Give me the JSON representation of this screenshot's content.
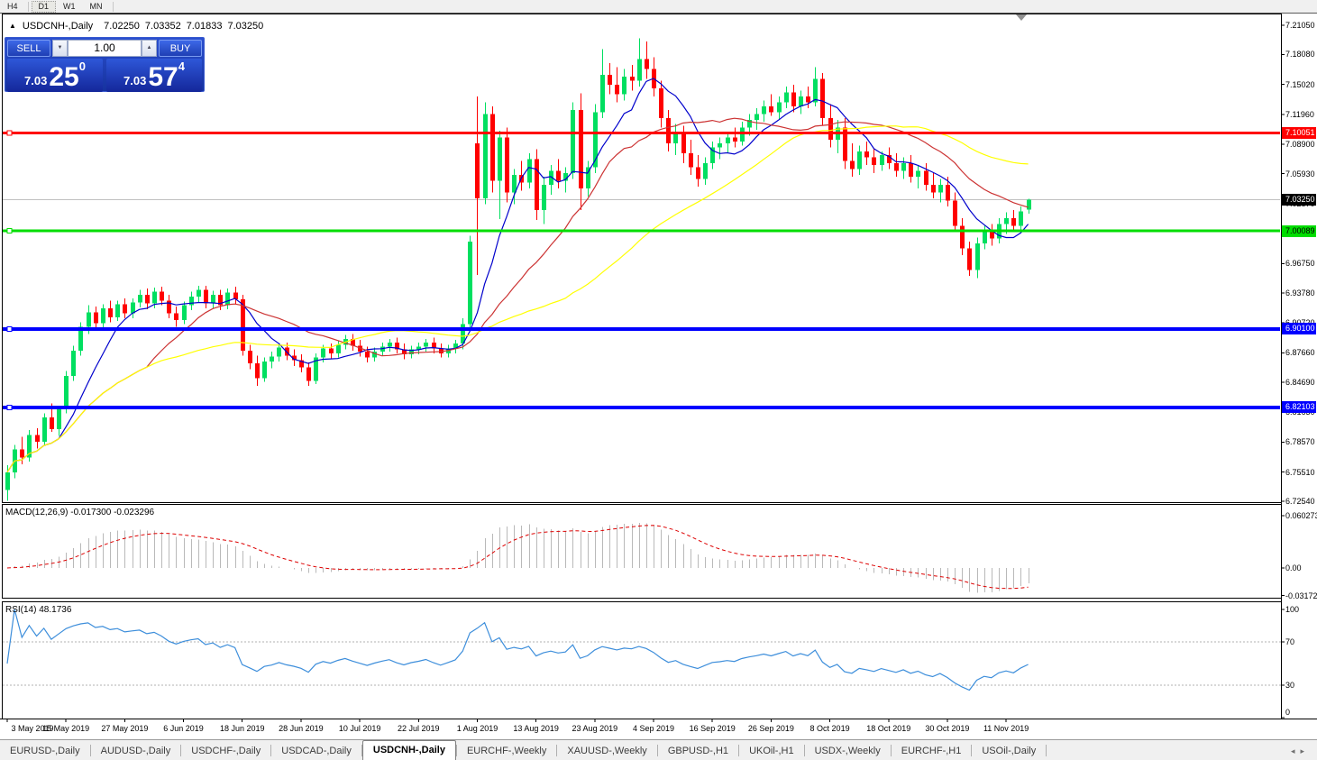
{
  "toolbar": {
    "timeframes": [
      "H4",
      "D1",
      "W1",
      "MN"
    ],
    "active": "D1"
  },
  "chart_header": {
    "collapse_icon": "▲",
    "symbol": "USDCNH-,Daily",
    "open": "7.02250",
    "high": "7.03352",
    "low": "7.01833",
    "close": "7.03250"
  },
  "trade_panel": {
    "sell_label": "SELL",
    "buy_label": "BUY",
    "volume": "1.00",
    "spin_down_icon": "▼",
    "spin_up_icon": "▲",
    "sell_price": {
      "small": "7.03",
      "big": "25",
      "sup": "0"
    },
    "buy_price": {
      "small": "7.03",
      "big": "57",
      "sup": "4"
    }
  },
  "tabs": {
    "items": [
      "EURUSD-,Daily",
      "AUDUSD-,Daily",
      "USDCHF-,Daily",
      "USDCAD-,Daily",
      "USDCNH-,Daily",
      "EURCHF-,Weekly",
      "XAUUSD-,Weekly",
      "GBPUSD-,H1",
      "UKOil-,H1",
      "USDX-,Weekly",
      "EURCHF-,H1",
      "USOil-,Daily"
    ],
    "active_index": 4,
    "scroll_left_icon": "◂",
    "scroll_right_icon": "▸"
  },
  "chart_data": {
    "type": "candlestick",
    "symbol": "USDCNH-,Daily",
    "ylim": [
      6.7254,
      7.2105
    ],
    "y_ticks": [
      "7.21050",
      "7.18080",
      "7.15020",
      "7.11960",
      "7.08900",
      "7.05930",
      "7.02870",
      "6.99810",
      "6.96750",
      "6.93780",
      "6.90720",
      "6.87660",
      "6.84690",
      "6.81630",
      "6.78570",
      "6.75510",
      "6.72540"
    ],
    "x_ticks": {
      "labels": [
        "3 May 2019",
        "15 May 2019",
        "27 May 2019",
        "6 Jun 2019",
        "18 Jun 2019",
        "28 Jun 2019",
        "10 Jul 2019",
        "22 Jul 2019",
        "1 Aug 2019",
        "13 Aug 2019",
        "23 Aug 2019",
        "4 Sep 2019",
        "16 Sep 2019",
        "26 Sep 2019",
        "8 Oct 2019",
        "18 Oct 2019",
        "30 Oct 2019",
        "11 Nov 2019"
      ],
      "indices": [
        0,
        8,
        16,
        24,
        32,
        40,
        48,
        56,
        64,
        72,
        80,
        88,
        96,
        104,
        112,
        120,
        128,
        136
      ]
    },
    "bull_color": "#00df60",
    "bear_color": "#ff0000",
    "price_lines": [
      {
        "price": 7.10051,
        "label": "7.10051",
        "color": "#ff0000",
        "thickness": 3,
        "fg": "#ffffff"
      },
      {
        "price": 7.00089,
        "label": "7.00089",
        "color": "#00dd00",
        "thickness": 3,
        "fg": "#000000"
      },
      {
        "price": 6.901,
        "label": "6.90100",
        "color": "#0000ff",
        "thickness": 4,
        "fg": "#ffffff"
      },
      {
        "price": 6.82103,
        "label": "6.82103",
        "color": "#0000ff",
        "thickness": 4,
        "fg": "#ffffff"
      }
    ],
    "current_price": {
      "value": 7.0325,
      "label": "7.03250",
      "line_color": "#c0c0c0",
      "bg": "#000000",
      "fg": "#ffffff"
    },
    "moving_averages": [
      {
        "period": 8,
        "color": "#0000cc"
      },
      {
        "period": 20,
        "color": "#cc3333"
      },
      {
        "period": 45,
        "color": "#ffff00"
      }
    ],
    "macd": {
      "name": "MACD(12,26,9)",
      "values": "-0.017300 -0.023296",
      "fast": 12,
      "slow": 26,
      "signal": 9,
      "range": [
        -0.031725,
        0.060273
      ],
      "ticks": [
        {
          "v": 0.060273,
          "t": "0.060273"
        },
        {
          "v": 0,
          "t": "0.00"
        },
        {
          "v": -0.031725,
          "t": "-0.031725"
        }
      ],
      "histogram_color": "#b9b9b9",
      "signal_color": "#dd0000"
    },
    "rsi": {
      "name": "RSI(14)",
      "value": "48.1736",
      "period": 14,
      "range": [
        0,
        100
      ],
      "levels": [
        70,
        30
      ],
      "ticks": [
        {
          "v": 100,
          "t": "100"
        },
        {
          "v": 70,
          "t": "70"
        },
        {
          "v": 30,
          "t": "30"
        },
        {
          "v": 0,
          "t": "0"
        }
      ],
      "line_color": "#3d8edb",
      "level_color": "#b0b0b0"
    },
    "shift_marker_color": "#909090",
    "candles": [
      [
        6.737,
        6.762,
        6.726,
        6.755
      ],
      [
        6.755,
        6.783,
        6.749,
        6.778
      ],
      [
        6.778,
        6.791,
        6.763,
        6.77
      ],
      [
        6.77,
        6.798,
        6.766,
        6.793
      ],
      [
        6.793,
        6.8,
        6.779,
        6.786
      ],
      [
        6.786,
        6.815,
        6.782,
        6.811
      ],
      [
        6.811,
        6.825,
        6.796,
        6.799
      ],
      [
        6.799,
        6.823,
        6.792,
        6.82
      ],
      [
        6.82,
        6.858,
        6.815,
        6.853
      ],
      [
        6.853,
        6.884,
        6.848,
        6.879
      ],
      [
        6.879,
        6.908,
        6.874,
        6.903
      ],
      [
        6.903,
        6.925,
        6.896,
        6.918
      ],
      [
        6.918,
        6.924,
        6.9,
        6.907
      ],
      [
        6.907,
        6.926,
        6.902,
        6.922
      ],
      [
        6.922,
        6.93,
        6.908,
        6.913
      ],
      [
        6.913,
        6.93,
        6.909,
        6.926
      ],
      [
        6.926,
        6.932,
        6.912,
        6.917
      ],
      [
        6.917,
        6.932,
        6.912,
        6.928
      ],
      [
        6.928,
        6.941,
        6.923,
        6.936
      ],
      [
        6.936,
        6.942,
        6.921,
        6.927
      ],
      [
        6.927,
        6.943,
        6.922,
        6.939
      ],
      [
        6.939,
        6.944,
        6.925,
        6.93
      ],
      [
        6.93,
        6.936,
        6.912,
        6.917
      ],
      [
        6.917,
        6.924,
        6.903,
        6.91
      ],
      [
        6.91,
        6.929,
        6.906,
        6.925
      ],
      [
        6.925,
        6.939,
        6.92,
        6.934
      ],
      [
        6.934,
        6.945,
        6.928,
        6.941
      ],
      [
        6.941,
        6.945,
        6.922,
        6.927
      ],
      [
        6.927,
        6.94,
        6.922,
        6.936
      ],
      [
        6.936,
        6.941,
        6.92,
        6.925
      ],
      [
        6.925,
        6.942,
        6.921,
        6.938
      ],
      [
        6.938,
        6.944,
        6.926,
        6.931
      ],
      [
        6.931,
        6.936,
        6.874,
        6.879
      ],
      [
        6.879,
        6.885,
        6.86,
        6.866
      ],
      [
        6.866,
        6.874,
        6.843,
        6.851
      ],
      [
        6.851,
        6.872,
        6.847,
        6.868
      ],
      [
        6.868,
        6.878,
        6.861,
        6.873
      ],
      [
        6.873,
        6.886,
        6.868,
        6.882
      ],
      [
        6.882,
        6.887,
        6.869,
        6.874
      ],
      [
        6.874,
        6.88,
        6.863,
        6.869
      ],
      [
        6.869,
        6.875,
        6.857,
        6.862
      ],
      [
        6.862,
        6.867,
        6.843,
        6.848
      ],
      [
        6.848,
        6.876,
        6.845,
        6.872
      ],
      [
        6.872,
        6.885,
        6.867,
        6.881
      ],
      [
        6.881,
        6.886,
        6.871,
        6.876
      ],
      [
        6.876,
        6.889,
        6.872,
        6.885
      ],
      [
        6.885,
        6.895,
        6.88,
        6.891
      ],
      [
        6.891,
        6.896,
        6.879,
        6.884
      ],
      [
        6.884,
        6.89,
        6.873,
        6.878
      ],
      [
        6.878,
        6.883,
        6.867,
        6.872
      ],
      [
        6.872,
        6.882,
        6.868,
        6.878
      ],
      [
        6.878,
        6.887,
        6.874,
        6.883
      ],
      [
        6.883,
        6.891,
        6.878,
        6.887
      ],
      [
        6.887,
        6.892,
        6.876,
        6.88
      ],
      [
        6.88,
        6.886,
        6.87,
        6.875
      ],
      [
        6.875,
        6.884,
        6.871,
        6.88
      ],
      [
        6.88,
        6.887,
        6.875,
        6.883
      ],
      [
        6.883,
        6.891,
        6.878,
        6.887
      ],
      [
        6.887,
        6.892,
        6.876,
        6.881
      ],
      [
        6.881,
        6.886,
        6.872,
        6.876
      ],
      [
        6.876,
        6.885,
        6.872,
        6.881
      ],
      [
        6.881,
        6.89,
        6.876,
        6.886
      ],
      [
        6.886,
        6.912,
        6.88,
        6.906
      ],
      [
        6.906,
        6.996,
        6.9,
        6.99
      ],
      [
        7.09,
        7.138,
        6.956,
        7.034
      ],
      [
        7.034,
        7.132,
        7.028,
        7.12
      ],
      [
        7.12,
        7.128,
        7.04,
        7.052
      ],
      [
        7.052,
        7.103,
        7.013,
        7.096
      ],
      [
        7.096,
        7.106,
        7.03,
        7.04
      ],
      [
        7.04,
        7.064,
        7.028,
        7.058
      ],
      [
        7.058,
        7.072,
        7.042,
        7.05
      ],
      [
        7.05,
        7.08,
        7.044,
        7.074
      ],
      [
        7.074,
        7.084,
        7.012,
        7.022
      ],
      [
        7.022,
        7.056,
        7.008,
        7.048
      ],
      [
        7.048,
        7.068,
        7.038,
        7.062
      ],
      [
        7.062,
        7.074,
        7.044,
        7.052
      ],
      [
        7.052,
        7.066,
        7.04,
        7.06
      ],
      [
        7.06,
        7.132,
        7.054,
        7.124
      ],
      [
        7.124,
        7.141,
        7.022,
        7.044
      ],
      [
        7.044,
        7.072,
        7.036,
        7.066
      ],
      [
        7.066,
        7.13,
        7.06,
        7.122
      ],
      [
        7.122,
        7.186,
        7.116,
        7.16
      ],
      [
        7.16,
        7.172,
        7.14,
        7.15
      ],
      [
        7.15,
        7.168,
        7.132,
        7.14
      ],
      [
        7.14,
        7.166,
        7.134,
        7.158
      ],
      [
        7.158,
        7.17,
        7.144,
        7.154
      ],
      [
        7.154,
        7.197,
        7.148,
        7.176
      ],
      [
        7.176,
        7.194,
        7.156,
        7.166
      ],
      [
        7.166,
        7.178,
        7.138,
        7.146
      ],
      [
        7.146,
        7.154,
        7.106,
        7.116
      ],
      [
        7.116,
        7.124,
        7.082,
        7.09
      ],
      [
        7.09,
        7.11,
        7.078,
        7.102
      ],
      [
        7.102,
        7.108,
        7.07,
        7.08
      ],
      [
        7.08,
        7.094,
        7.058,
        7.066
      ],
      [
        7.066,
        7.078,
        7.046,
        7.054
      ],
      [
        7.054,
        7.076,
        7.048,
        7.07
      ],
      [
        7.07,
        7.092,
        7.064,
        7.086
      ],
      [
        7.086,
        7.096,
        7.074,
        7.09
      ],
      [
        7.09,
        7.102,
        7.08,
        7.096
      ],
      [
        7.096,
        7.106,
        7.086,
        7.092
      ],
      [
        7.092,
        7.112,
        7.088,
        7.106
      ],
      [
        7.106,
        7.12,
        7.098,
        7.114
      ],
      [
        7.114,
        7.126,
        7.104,
        7.12
      ],
      [
        7.12,
        7.134,
        7.112,
        7.128
      ],
      [
        7.128,
        7.14,
        7.118,
        7.122
      ],
      [
        7.122,
        7.138,
        7.114,
        7.132
      ],
      [
        7.132,
        7.148,
        7.126,
        7.142
      ],
      [
        7.142,
        7.15,
        7.122,
        7.128
      ],
      [
        7.128,
        7.144,
        7.12,
        7.138
      ],
      [
        7.138,
        7.148,
        7.126,
        7.132
      ],
      [
        7.132,
        7.168,
        7.128,
        7.156
      ],
      [
        7.156,
        7.162,
        7.108,
        7.116
      ],
      [
        7.116,
        7.13,
        7.086,
        7.094
      ],
      [
        7.094,
        7.114,
        7.08,
        7.106
      ],
      [
        7.106,
        7.116,
        7.064,
        7.072
      ],
      [
        7.072,
        7.09,
        7.056,
        7.064
      ],
      [
        7.064,
        7.088,
        7.058,
        7.082
      ],
      [
        7.082,
        7.092,
        7.068,
        7.076
      ],
      [
        7.076,
        7.084,
        7.06,
        7.068
      ],
      [
        7.068,
        7.082,
        7.062,
        7.078
      ],
      [
        7.078,
        7.086,
        7.064,
        7.07
      ],
      [
        7.07,
        7.08,
        7.056,
        7.062
      ],
      [
        7.062,
        7.076,
        7.054,
        7.07
      ],
      [
        7.07,
        7.078,
        7.05,
        7.056
      ],
      [
        7.056,
        7.068,
        7.044,
        7.062
      ],
      [
        7.062,
        7.07,
        7.042,
        7.048
      ],
      [
        7.048,
        7.06,
        7.034,
        7.04
      ],
      [
        7.04,
        7.054,
        7.03,
        7.048
      ],
      [
        7.048,
        7.056,
        7.026,
        7.032
      ],
      [
        7.032,
        7.04,
        7.0,
        7.006
      ],
      [
        7.006,
        7.014,
        6.976,
        6.983
      ],
      [
        6.983,
        6.99,
        6.955,
        6.961
      ],
      [
        6.961,
        6.994,
        6.953,
        6.988
      ],
      [
        6.988,
        7.006,
        6.982,
        7.0
      ],
      [
        7.0,
        7.008,
        6.986,
        6.993
      ],
      [
        6.993,
        7.014,
        6.988,
        7.008
      ],
      [
        7.008,
        7.02,
        6.998,
        7.014
      ],
      [
        7.014,
        7.022,
        7.0,
        7.006
      ],
      [
        7.006,
        7.026,
        7.002,
        7.021
      ],
      [
        7.0225,
        7.03352,
        7.01833,
        7.0325
      ]
    ]
  }
}
